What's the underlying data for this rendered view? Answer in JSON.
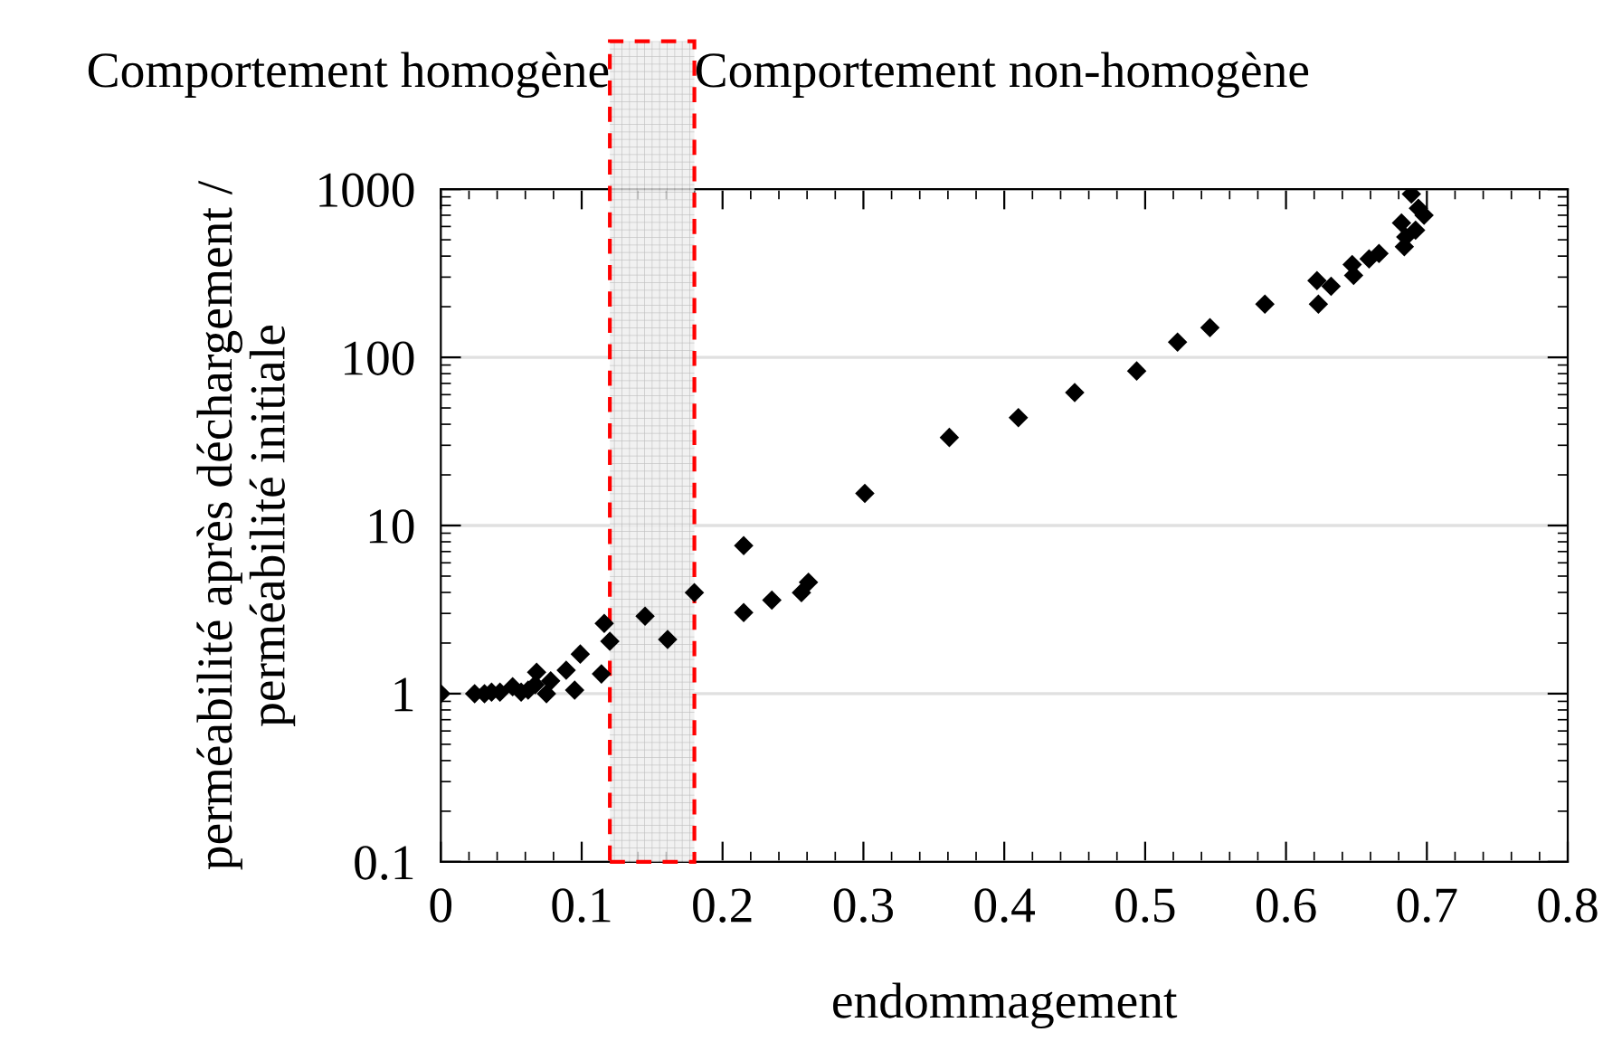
{
  "chart_data": {
    "type": "scatter",
    "xlabel": "endommagement",
    "ylabel": "perméabilité après déchargement /\nperméabilité initiale",
    "annotations": [
      "Comportement homogène",
      "Comportement non-homogène"
    ],
    "log": "y",
    "grid": "y",
    "marker": "diamond",
    "xlim": [
      0,
      0.8
    ],
    "xticks": [
      0,
      0.1,
      0.2,
      0.3,
      0.4,
      0.5,
      0.6,
      0.7,
      0.8
    ],
    "ylim": [
      0.1,
      1000
    ],
    "yticks": [
      0.1,
      1,
      10,
      100,
      1000
    ],
    "bands": [
      {
        "axis": "x",
        "from": 0.12,
        "to": 0.18,
        "color": "#ff0000"
      }
    ],
    "series": [
      {
        "color": "#000000",
        "x": [
          0,
          0.024,
          0.031,
          0.036,
          0.042,
          0.051,
          0.057,
          0.062,
          0.067,
          0.068,
          0.075,
          0.078,
          0.089,
          0.099,
          0.095,
          0.116,
          0.12,
          0.114,
          0.145,
          0.161,
          0.18,
          0.215,
          0.215,
          0.235,
          0.256,
          0.261,
          0.301,
          0.361,
          0.41,
          0.45,
          0.494,
          0.523,
          0.546,
          0.585,
          0.622,
          0.623,
          0.632,
          0.647,
          0.648,
          0.659,
          0.666,
          0.682,
          0.684,
          0.685,
          0.689,
          0.692,
          0.694,
          0.698
        ],
        "values": [
          1,
          1,
          1,
          1.02,
          1.02,
          1.1,
          1.02,
          1.05,
          1.13,
          1.34,
          1,
          1.19,
          1.38,
          1.72,
          1.05,
          2.62,
          2.05,
          1.31,
          2.89,
          2.1,
          3.99,
          7.6,
          3.04,
          3.6,
          3.99,
          4.6,
          15.5,
          33.4,
          43.8,
          61.7,
          83,
          123,
          150,
          207,
          286,
          207,
          265,
          356,
          307,
          385,
          415,
          630,
          455,
          520,
          935,
          570,
          770,
          700
        ]
      }
    ]
  }
}
